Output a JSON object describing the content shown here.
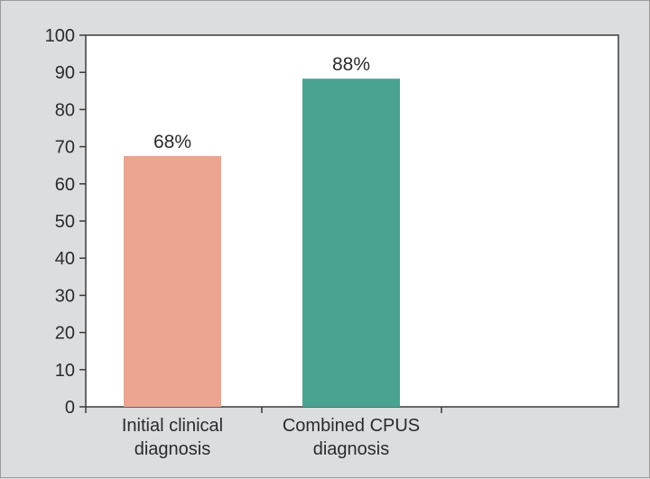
{
  "chart_data": {
    "type": "bar",
    "categories": [
      [
        "Initial clinical",
        "diagnosis"
      ],
      [
        "Combined CPUS",
        "diagnosis"
      ]
    ],
    "values": [
      67.5,
      88.3
    ],
    "data_labels": [
      "68%",
      "88%"
    ],
    "bar_colors": [
      "#eba590",
      "#4aa391"
    ],
    "yticks": [
      0,
      10,
      20,
      30,
      40,
      50,
      60,
      70,
      80,
      90,
      100
    ],
    "ylim": [
      0,
      100
    ],
    "title": "",
    "xlabel": "",
    "ylabel": "",
    "grid": false,
    "background": "#dcdddf",
    "plot_background": "#ffffff"
  }
}
